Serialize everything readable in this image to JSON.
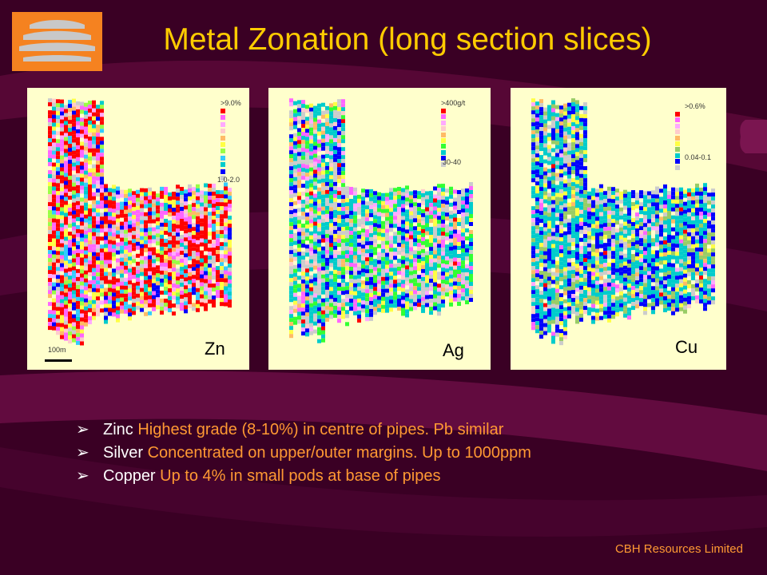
{
  "header": {
    "title": "Metal Zonation (long section slices)"
  },
  "logo": {
    "icon": "cbh-logo-icon",
    "colors": [
      "#f58220",
      "#c8c8c8"
    ]
  },
  "panels": [
    {
      "id": "zn",
      "label": "Zn",
      "legend_top": ">9.0%",
      "legend_bottom": "1.0-2.0",
      "scale": "100m",
      "palette": [
        "#ff0000",
        "#ff66ff",
        "#ffaaff",
        "#ffcccc",
        "#ffbb66",
        "#ffff44",
        "#99ff44",
        "#33ccff",
        "#00cccc",
        "#0000ff",
        "#cccccc"
      ]
    },
    {
      "id": "ag",
      "label": "Ag",
      "legend_top": ">400g/t",
      "legend_bottom": "30-40",
      "palette": [
        "#ff0000",
        "#ff66ff",
        "#ffaaff",
        "#ffcccc",
        "#ffbb66",
        "#ffff44",
        "#33ff33",
        "#00cccc",
        "#0000ff",
        "#cccccc"
      ]
    },
    {
      "id": "cu",
      "label": "Cu",
      "legend_top": ">0.6%",
      "legend_bottom": "0.04-0.1",
      "palette": [
        "#ff0000",
        "#ff66ff",
        "#ffaaff",
        "#ffcccc",
        "#ffbb66",
        "#ffff44",
        "#99cc66",
        "#00cccc",
        "#0000ff",
        "#cccccc"
      ]
    }
  ],
  "bullets": [
    {
      "keyword": "Zinc",
      "text": "Highest grade (8-10%) in centre of pipes. Pb similar"
    },
    {
      "keyword": "Silver",
      "text": "Concentrated on upper/outer margins. Up to 1000ppm"
    },
    {
      "keyword": "Copper",
      "text": "Up to 4% in small pods at base of pipes"
    }
  ],
  "footer": {
    "company": "CBH Resources Limited"
  },
  "colors": {
    "background": "#3a0024",
    "title": "#ffcc00",
    "accent": "#ff9933",
    "panel": "#ffffcc"
  }
}
